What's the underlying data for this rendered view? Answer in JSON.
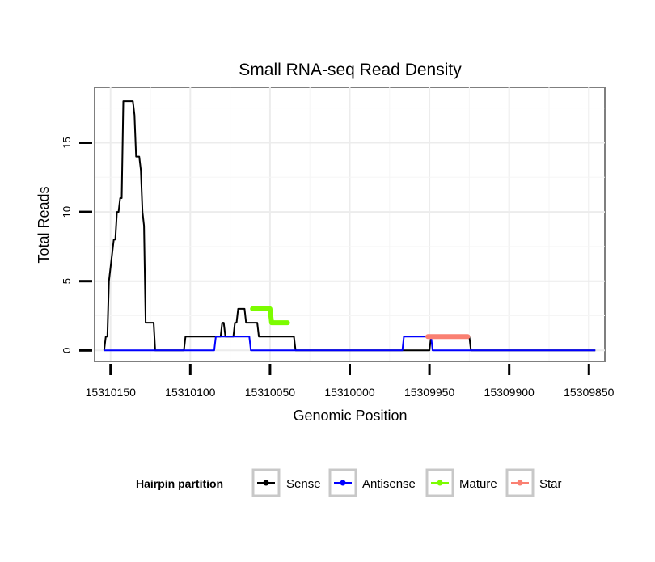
{
  "chart_data": {
    "type": "line",
    "title": "Small RNA-seq Read Density",
    "xlabel": "Genomic Position",
    "ylabel": "Total Reads",
    "x_reversed": true,
    "xlim": [
      15310160,
      15309840
    ],
    "ylim": [
      -0.8,
      19
    ],
    "x_ticks": [
      15310150,
      15310100,
      15310050,
      15310000,
      15309950,
      15309900,
      15309850
    ],
    "y_ticks": [
      0,
      5,
      10,
      15
    ],
    "grid": true,
    "legend": {
      "title": "Hairpin partition",
      "placement": "bottom",
      "entries": [
        {
          "name": "Sense",
          "color": "#000000"
        },
        {
          "name": "Antisense",
          "color": "#0000ff"
        },
        {
          "name": "Mature",
          "color": "#7cfc00"
        },
        {
          "name": "Star",
          "color": "#fa8072"
        }
      ]
    },
    "series": [
      {
        "name": "Sense",
        "color": "#000000",
        "points": [
          [
            15310154,
            0
          ],
          [
            15310153,
            1
          ],
          [
            15310152,
            1
          ],
          [
            15310151,
            5
          ],
          [
            15310150,
            6
          ],
          [
            15310149,
            7
          ],
          [
            15310148,
            8
          ],
          [
            15310147,
            8
          ],
          [
            15310146,
            10
          ],
          [
            15310145,
            10
          ],
          [
            15310144,
            11
          ],
          [
            15310143,
            11
          ],
          [
            15310142,
            18
          ],
          [
            15310141,
            18
          ],
          [
            15310138,
            18
          ],
          [
            15310137,
            18
          ],
          [
            15310136,
            18
          ],
          [
            15310135,
            17
          ],
          [
            15310134,
            14
          ],
          [
            15310133,
            14
          ],
          [
            15310132,
            14
          ],
          [
            15310131,
            13
          ],
          [
            15310130,
            10
          ],
          [
            15310129,
            9
          ],
          [
            15310128,
            2
          ],
          [
            15310127,
            2
          ],
          [
            15310124,
            2
          ],
          [
            15310123,
            2
          ],
          [
            15310122,
            0
          ],
          [
            15310121,
            0
          ],
          [
            15310104,
            0
          ],
          [
            15310103,
            1
          ],
          [
            15310093,
            1
          ],
          [
            15310092,
            1
          ],
          [
            15310083,
            1
          ],
          [
            15310082,
            1
          ],
          [
            15310081,
            1
          ],
          [
            15310080,
            2
          ],
          [
            15310079,
            2
          ],
          [
            15310078,
            1
          ],
          [
            15310073,
            1
          ],
          [
            15310072,
            2
          ],
          [
            15310071,
            2
          ],
          [
            15310070,
            3
          ],
          [
            15310069,
            3
          ],
          [
            15310068,
            3
          ],
          [
            15310067,
            3
          ],
          [
            15310066,
            3
          ],
          [
            15310065,
            2
          ],
          [
            15310064,
            2
          ],
          [
            15310063,
            2
          ],
          [
            15310062,
            2
          ],
          [
            15310061,
            2
          ],
          [
            15310060,
            2
          ],
          [
            15310059,
            2
          ],
          [
            15310058,
            2
          ],
          [
            15310057,
            1
          ],
          [
            15310056,
            1
          ],
          [
            15310055,
            1
          ],
          [
            15310054,
            1
          ],
          [
            15310053,
            1
          ],
          [
            15310052,
            1
          ],
          [
            15310051,
            1
          ],
          [
            15310050,
            1
          ],
          [
            15310049,
            1
          ],
          [
            15310048,
            1
          ],
          [
            15310047,
            1
          ],
          [
            15310046,
            1
          ],
          [
            15310045,
            1
          ],
          [
            15310044,
            1
          ],
          [
            15310043,
            1
          ],
          [
            15310042,
            1
          ],
          [
            15310041,
            1
          ],
          [
            15310040,
            1
          ],
          [
            15310039,
            1
          ],
          [
            15310038,
            1
          ],
          [
            15310037,
            1
          ],
          [
            15310036,
            1
          ],
          [
            15310035,
            1
          ],
          [
            15310034,
            0
          ],
          [
            15310033,
            0
          ],
          [
            15309950,
            0
          ],
          [
            15309949,
            1
          ],
          [
            15309925,
            1
          ],
          [
            15309924,
            0
          ],
          [
            15309846,
            0
          ]
        ]
      },
      {
        "name": "Antisense",
        "color": "#0000ff",
        "points": [
          [
            15310154,
            0
          ],
          [
            15310085,
            0
          ],
          [
            15310084,
            1
          ],
          [
            15310063,
            1
          ],
          [
            15310062,
            0
          ],
          [
            15309967,
            0
          ],
          [
            15309966,
            1
          ],
          [
            15309950,
            1
          ],
          [
            15309949,
            1
          ],
          [
            15309948,
            0
          ],
          [
            15309846,
            0
          ]
        ]
      },
      {
        "name": "Mature",
        "color": "#7cfc00",
        "points": [
          [
            15310061,
            3
          ],
          [
            15310050,
            3
          ],
          [
            15310049,
            2
          ],
          [
            15310039,
            2
          ]
        ]
      },
      {
        "name": "Star",
        "color": "#fa8072",
        "points": [
          [
            15309951,
            1
          ],
          [
            15309926,
            1
          ]
        ]
      }
    ]
  }
}
